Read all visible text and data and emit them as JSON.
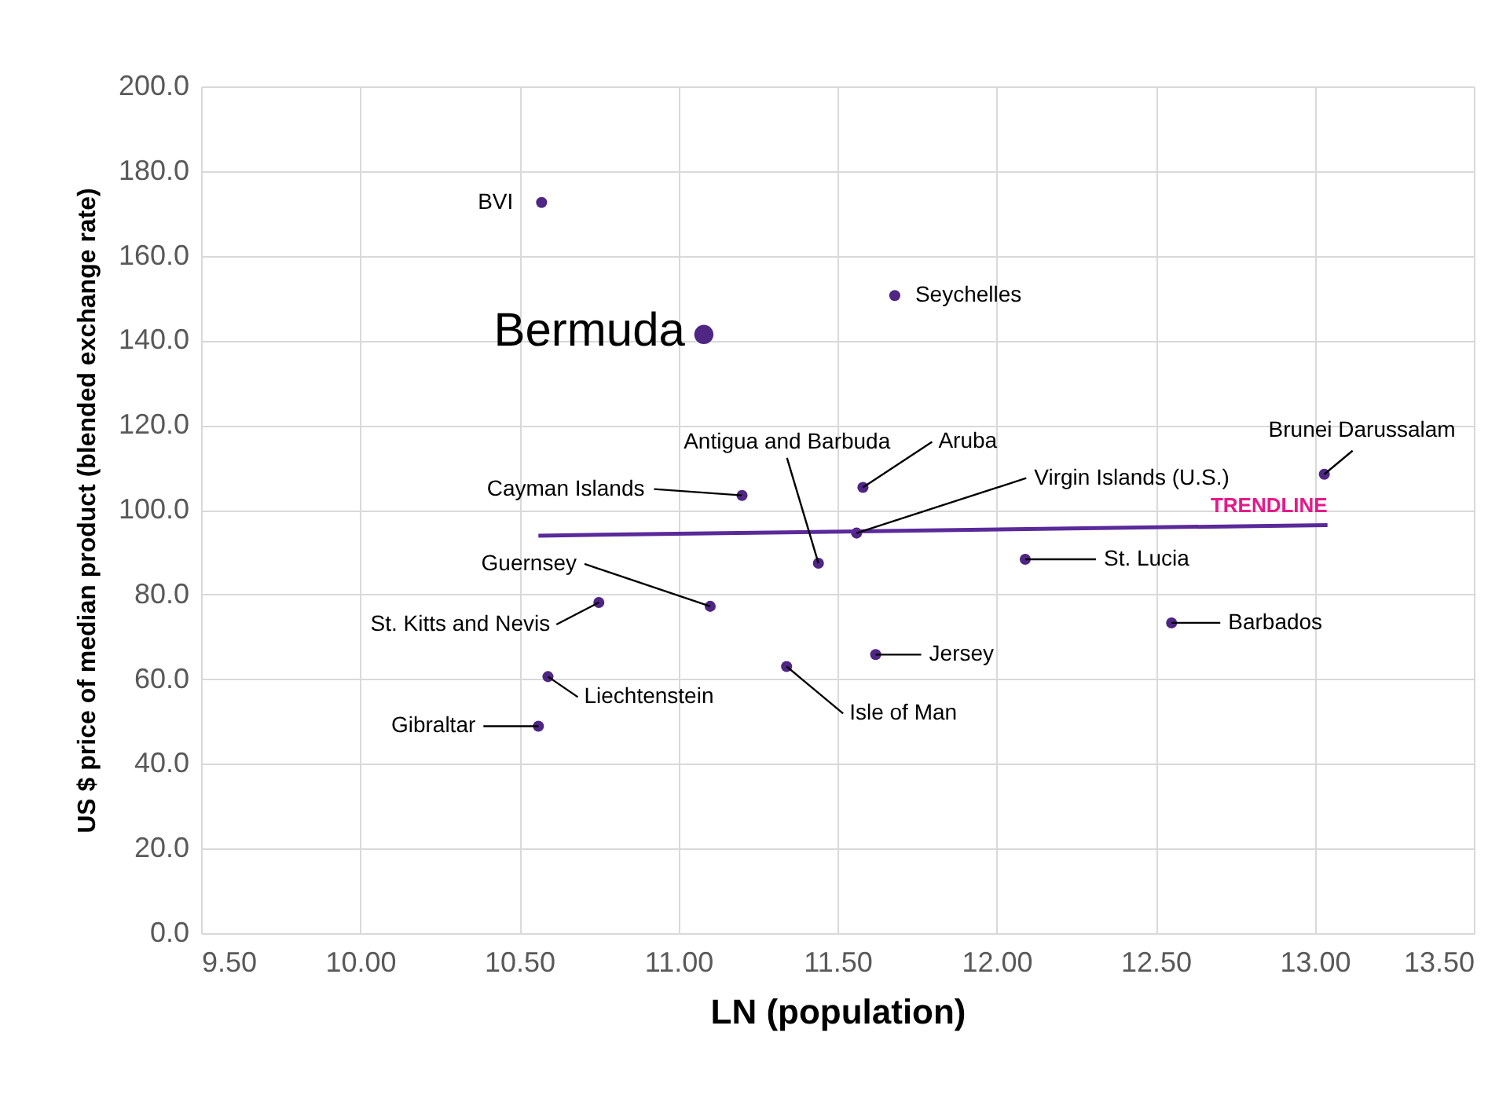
{
  "chart_data": {
    "type": "scatter",
    "xlabel": "LN (population)",
    "ylabel": "US $ price of median product (blended exchange rate)",
    "x": [
      10.57,
      11.08,
      11.68,
      11.58,
      13.03,
      11.2,
      11.56,
      11.44,
      12.09,
      11.1,
      10.75,
      12.55,
      11.62,
      11.34,
      10.59,
      10.56
    ],
    "series": [
      {
        "color": "#4f2683",
        "marker": "circle",
        "values": [
          172.6,
          141.4,
          150.6,
          105.3,
          108.4,
          103.4,
          94.5,
          87.4,
          88.3,
          77.2,
          78.1,
          73.3,
          65.8,
          63.0,
          60.6,
          48.9
        ],
        "sizes": [
          0.33,
          1,
          0.33,
          0.33,
          0.33,
          0.33,
          0.33,
          0.33,
          0.33,
          0.33,
          0.33,
          0.33,
          0.33,
          0.33,
          0.33,
          0.33
        ]
      },
      {
        "name": "TRENDLINE",
        "type": "line",
        "marker": "none",
        "color": "#5a2a9a",
        "x": [
          10.56,
          13.04
        ],
        "values": [
          93.9,
          96.4
        ]
      }
    ],
    "annotations": [
      {
        "text": "BVI",
        "x": 10.57,
        "y": 172.6
      },
      {
        "text": "Bermuda",
        "x": 11.08,
        "y": 141.4
      },
      {
        "text": "Seychelles",
        "x": 11.68,
        "y": 150.6
      },
      {
        "text": "Aruba",
        "x": 11.58,
        "y": 105.3
      },
      {
        "text": "Brunei Darussalam",
        "x": 13.03,
        "y": 108.4
      },
      {
        "text": "Cayman Islands",
        "x": 11.2,
        "y": 103.4
      },
      {
        "text": "Virgin Islands (U.S.)",
        "x": 11.56,
        "y": 94.5
      },
      {
        "text": "Antigua and Barbuda",
        "x": 11.44,
        "y": 87.4
      },
      {
        "text": "St. Lucia",
        "x": 12.09,
        "y": 88.3
      },
      {
        "text": "Guernsey",
        "x": 11.1,
        "y": 77.2
      },
      {
        "text": "St. Kitts and Nevis",
        "x": 10.75,
        "y": 78.1
      },
      {
        "text": "Barbados",
        "x": 12.55,
        "y": 73.3
      },
      {
        "text": "Jersey",
        "x": 11.62,
        "y": 65.8
      },
      {
        "text": "Isle of Man",
        "x": 11.34,
        "y": 63.0
      },
      {
        "text": "Liechtenstein",
        "x": 10.59,
        "y": 60.6
      },
      {
        "text": "Gibraltar",
        "x": 10.56,
        "y": 48.9
      }
    ],
    "xlim": [
      9.5,
      13.5
    ],
    "ylim": [
      0,
      200
    ],
    "xticks": [
      {
        "value": 9.5,
        "label": "9.50"
      },
      {
        "value": 10,
        "label": "10.00"
      },
      {
        "value": 10.5,
        "label": "10.50"
      },
      {
        "value": 11,
        "label": "11.00"
      },
      {
        "value": 11.5,
        "label": "11.50"
      },
      {
        "value": 12,
        "label": "12.00"
      },
      {
        "value": 12.5,
        "label": "12.50"
      },
      {
        "value": 13,
        "label": "13.00"
      },
      {
        "value": 13.5,
        "label": "13.50"
      }
    ],
    "yticks": [
      {
        "value": 0,
        "label": "0.0"
      },
      {
        "value": 20,
        "label": "20.0"
      },
      {
        "value": 40,
        "label": "40.0"
      },
      {
        "value": 60,
        "label": "60.0"
      },
      {
        "value": 80,
        "label": "80.0"
      },
      {
        "value": 100,
        "label": "100.0"
      },
      {
        "value": 120,
        "label": "120.0"
      },
      {
        "value": 140,
        "label": "140.0"
      },
      {
        "value": 160,
        "label": "160.0"
      },
      {
        "value": 180,
        "label": "180.0"
      },
      {
        "value": 200,
        "label": "200.0"
      }
    ],
    "grid": true
  }
}
